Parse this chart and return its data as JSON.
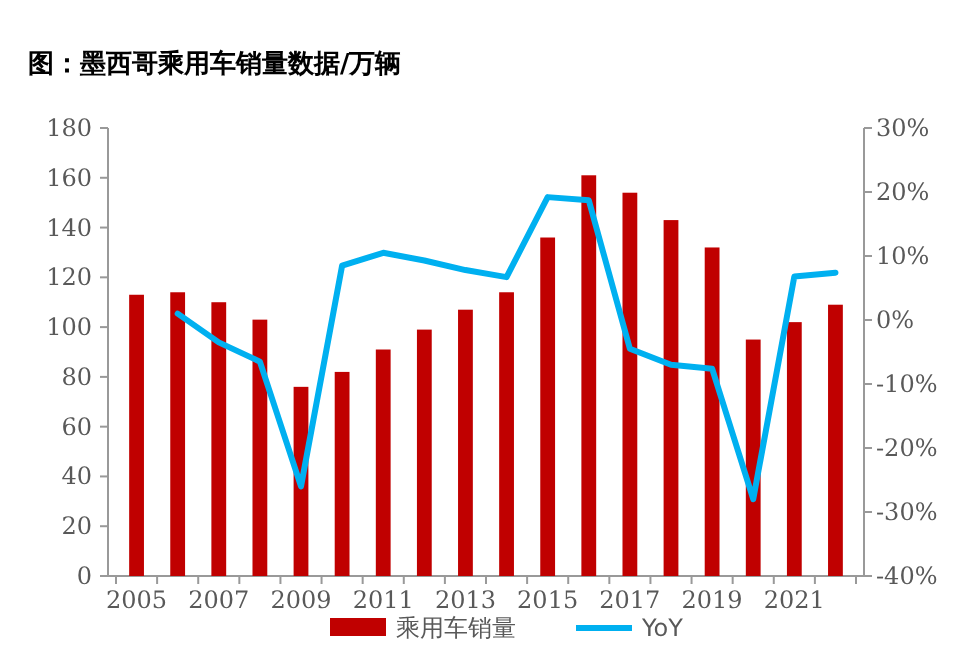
{
  "chart_data": {
    "type": "bar",
    "title": "图：墨西哥乘用车销量数据/万辆",
    "categories": [
      "2005",
      null,
      "2007",
      null,
      "2009",
      null,
      "2011",
      null,
      "2013",
      null,
      "2015",
      null,
      "2017",
      null,
      "2019",
      null,
      "2021",
      null
    ],
    "series": [
      {
        "name": "乘用车销量",
        "color": "#c00000",
        "values": [
          113,
          114,
          110,
          103,
          76,
          82,
          91,
          99,
          107,
          114,
          136,
          161,
          154,
          143,
          132,
          95,
          102,
          109
        ]
      },
      {
        "name": "YoY",
        "type": "line",
        "axis": "y2",
        "color": "#00b0f0",
        "values": [
          null,
          1,
          -3.5,
          -6.5,
          -26,
          8.5,
          10.5,
          9.3,
          7.8,
          6.7,
          19.2,
          18.7,
          -4.5,
          -7,
          -7.6,
          -28,
          6.8,
          7.4
        ]
      }
    ],
    "ylim": [
      0,
      180
    ],
    "yticks": [
      0,
      20,
      40,
      60,
      80,
      100,
      120,
      140,
      160,
      180
    ],
    "y2lim": [
      -40,
      30
    ],
    "y2ticks": [
      {
        "value": -40,
        "label": "-40%"
      },
      {
        "value": -30,
        "label": "-30%"
      },
      {
        "value": -20,
        "label": "-20%"
      },
      {
        "value": -10,
        "label": "-10%"
      },
      {
        "value": 0,
        "label": "0%"
      },
      {
        "value": 10,
        "label": "10%"
      },
      {
        "value": 20,
        "label": "20%"
      },
      {
        "value": 30,
        "label": "30%"
      }
    ],
    "grid": false,
    "legend": "bottom"
  }
}
